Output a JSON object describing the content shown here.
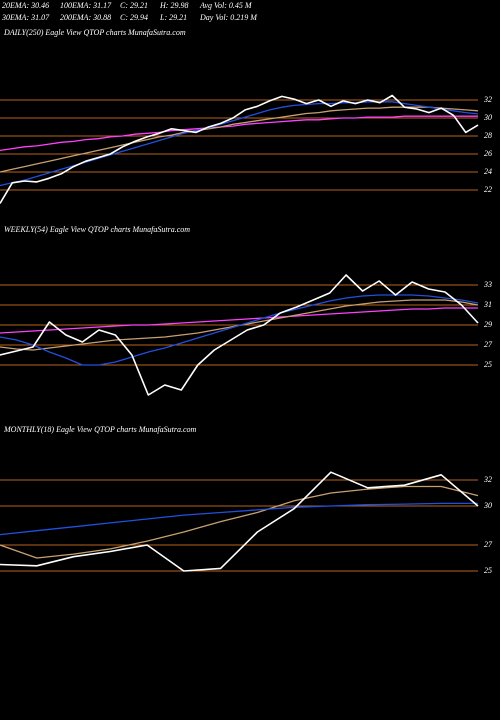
{
  "header": {
    "lines": [
      [
        "20EMA: 30.46",
        "100EMA: 31.17",
        "C: 29.21",
        "H: 29.98",
        "Avg Vol: 0.45 M"
      ],
      [
        "30EMA: 31.07",
        "200EMA: 30.88",
        "C: 29.94",
        "L: 29.21",
        "Day Vol: 0.219 M"
      ]
    ]
  },
  "chart_data": [
    {
      "type": "line",
      "title": "DAILY(250) Eagle  View  QTOP charts MunafaSutra.com",
      "ylim": [
        20,
        34
      ],
      "yticks": [
        32,
        30,
        28,
        26,
        24,
        22
      ],
      "grid": true,
      "series": [
        {
          "color": "#ff40ff",
          "values": [
            26.4,
            26.6,
            26.8,
            26.9,
            27.1,
            27.3,
            27.4,
            27.6,
            27.7,
            27.9,
            28.0,
            28.2,
            28.3,
            28.4,
            28.6,
            28.7,
            28.8,
            28.9,
            29.0,
            29.1,
            29.3,
            29.4,
            29.5,
            29.6,
            29.7,
            29.8,
            29.8,
            29.9,
            30.0,
            30.0,
            30.1,
            30.1,
            30.1,
            30.2,
            30.2,
            30.2,
            30.2,
            30.2,
            30.2,
            30.2
          ]
        },
        {
          "color": "#c8a070",
          "values": [
            24.0,
            24.3,
            24.6,
            24.9,
            25.2,
            25.5,
            25.8,
            26.1,
            26.4,
            26.7,
            27.0,
            27.3,
            27.6,
            27.9,
            28.1,
            28.4,
            28.6,
            28.8,
            29.0,
            29.3,
            29.5,
            29.7,
            29.9,
            30.1,
            30.3,
            30.5,
            30.6,
            30.8,
            30.9,
            31.0,
            31.1,
            31.1,
            31.2,
            31.2,
            31.2,
            31.2,
            31.1,
            31.0,
            30.9,
            30.8
          ]
        },
        {
          "color": "#2050e0",
          "values": [
            22.5,
            22.8,
            23.1,
            23.5,
            23.9,
            24.3,
            24.7,
            25.1,
            25.5,
            25.9,
            26.3,
            26.7,
            27.1,
            27.5,
            27.9,
            28.3,
            28.6,
            28.9,
            29.3,
            29.7,
            30.1,
            30.5,
            30.9,
            31.2,
            31.4,
            31.5,
            31.6,
            31.6,
            31.7,
            31.7,
            31.8,
            31.8,
            31.8,
            31.6,
            31.4,
            31.2,
            31.0,
            30.8,
            30.6,
            30.46
          ]
        },
        {
          "color": "#ffffff",
          "values": [
            20.5,
            22.8,
            23.0,
            22.9,
            23.3,
            23.8,
            24.6,
            25.2,
            25.6,
            26.0,
            26.8,
            27.4,
            27.9,
            28.3,
            28.8,
            28.6,
            28.4,
            29.0,
            29.4,
            30.0,
            30.9,
            31.3,
            31.9,
            32.4,
            32.1,
            31.6,
            32.0,
            31.3,
            31.9,
            31.6,
            32.0,
            31.7,
            32.5,
            31.2,
            31.0,
            30.6,
            31.1,
            30.3,
            28.4,
            29.21
          ]
        }
      ]
    },
    {
      "type": "line",
      "title": "WEEKLY(54) Eagle  View  QTOP charts MunafaSutra.com",
      "ylim": [
        20,
        35
      ],
      "yticks": [
        33,
        31,
        29,
        27,
        25
      ],
      "grid": true,
      "series": [
        {
          "color": "#ff40ff",
          "values": [
            28.2,
            28.3,
            28.4,
            28.5,
            28.6,
            28.7,
            28.8,
            28.9,
            29.0,
            29.0,
            29.1,
            29.2,
            29.3,
            29.4,
            29.5,
            29.6,
            29.7,
            29.8,
            29.9,
            30.0,
            30.1,
            30.2,
            30.3,
            30.4,
            30.5,
            30.6,
            30.6,
            30.7,
            30.7,
            30.7
          ]
        },
        {
          "color": "#c8a070",
          "values": [
            26.8,
            26.6,
            26.5,
            26.7,
            26.9,
            27.1,
            27.3,
            27.5,
            27.6,
            27.7,
            27.8,
            28.0,
            28.2,
            28.5,
            28.8,
            29.1,
            29.4,
            29.7,
            30.0,
            30.3,
            30.6,
            30.9,
            31.1,
            31.3,
            31.4,
            31.5,
            31.5,
            31.5,
            31.3,
            31.0
          ]
        },
        {
          "color": "#2050e0",
          "values": [
            27.8,
            27.5,
            27.0,
            26.3,
            25.7,
            25.0,
            25.0,
            25.3,
            25.8,
            26.3,
            26.7,
            27.2,
            27.7,
            28.2,
            28.7,
            29.2,
            29.7,
            30.2,
            30.6,
            31.0,
            31.4,
            31.7,
            31.9,
            32.0,
            32.0,
            32.0,
            31.9,
            31.7,
            31.5,
            31.2
          ]
        },
        {
          "color": "#ffffff",
          "values": [
            26.0,
            26.4,
            26.8,
            29.3,
            28.0,
            27.3,
            28.5,
            28.0,
            26.0,
            22.0,
            23.0,
            22.5,
            25.0,
            26.5,
            27.5,
            28.5,
            29.0,
            30.2,
            30.8,
            31.5,
            32.2,
            34.0,
            32.4,
            33.4,
            32.0,
            33.3,
            32.6,
            32.3,
            31.0,
            29.2
          ]
        }
      ]
    },
    {
      "type": "line",
      "title": "MONTHLY(18) Eagle  View  QTOP charts MunafaSutra.com",
      "ylim": [
        23,
        34
      ],
      "yticks": [
        32,
        30,
        27,
        25
      ],
      "grid": true,
      "series": [
        {
          "color": "#c8a070",
          "values": [
            27.0,
            26.0,
            26.3,
            26.7,
            27.3,
            28.0,
            28.8,
            29.5,
            30.4,
            31.0,
            31.3,
            31.5,
            31.5,
            30.8
          ]
        },
        {
          "color": "#2050e0",
          "values": [
            27.8,
            28.1,
            28.4,
            28.7,
            29.0,
            29.3,
            29.5,
            29.7,
            29.9,
            30.0,
            30.1,
            30.15,
            30.2,
            30.2
          ]
        },
        {
          "color": "#ffffff",
          "values": [
            25.5,
            25.4,
            26.1,
            26.5,
            27.0,
            25.0,
            25.2,
            28.0,
            29.8,
            32.6,
            31.4,
            31.6,
            32.4,
            30.0
          ]
        }
      ]
    }
  ]
}
